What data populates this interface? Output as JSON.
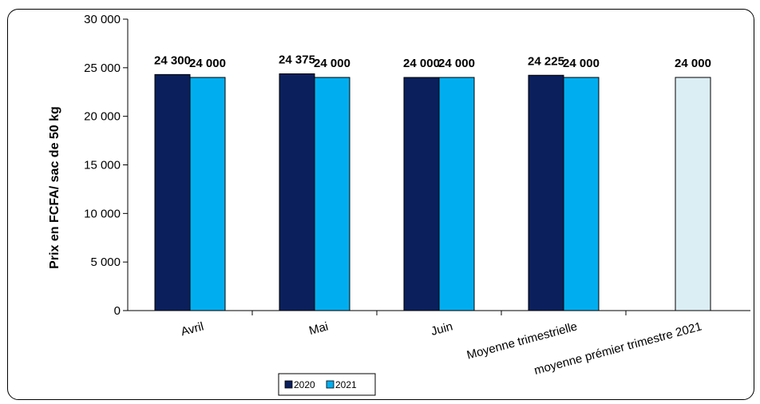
{
  "chart_data": {
    "type": "bar",
    "title": "",
    "xlabel": "",
    "ylabel": "Prix en FCFA/ sac de 50 kg",
    "ylim": [
      0,
      30000
    ],
    "yticks": [
      0,
      5000,
      10000,
      15000,
      20000,
      25000,
      30000
    ],
    "ytick_labels": [
      "0",
      "5 000",
      "10 000",
      "15 000",
      "20 000",
      "25 000",
      "30 000"
    ],
    "grid": false,
    "legend_position": "bottom",
    "categories": [
      "Avril",
      "Mai",
      "Juin",
      "Moyenne trimestrielle",
      "moyenne prémier trimestre 2021"
    ],
    "series": [
      {
        "name": "2020",
        "color": "#0a1f5c",
        "values": [
          24300,
          24375,
          24000,
          24225,
          null
        ],
        "labels": [
          "24 300",
          "24 375",
          "24 000",
          "24 225",
          ""
        ]
      },
      {
        "name": "2021",
        "color": "#00aeef",
        "values": [
          24000,
          24000,
          24000,
          24000,
          null
        ],
        "labels": [
          "24 000",
          "24 000",
          "24 000",
          "24 000",
          ""
        ]
      }
    ],
    "extra_bar": {
      "category_index": 4,
      "value": 24000,
      "label": "24 000",
      "color": "#dbeef4"
    }
  }
}
